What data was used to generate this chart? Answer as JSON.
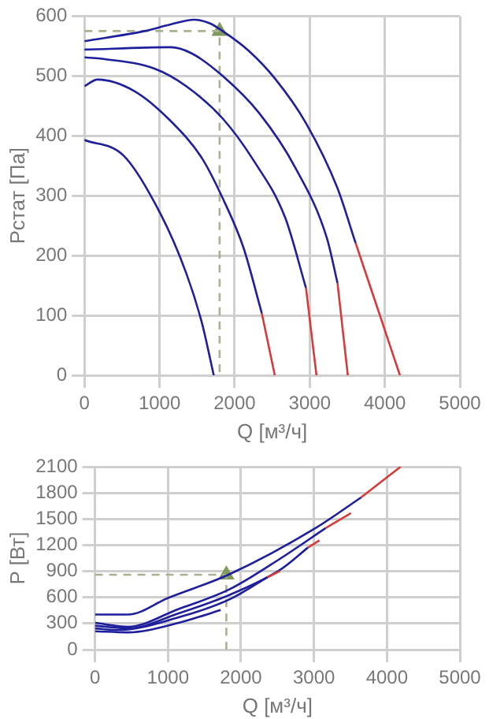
{
  "chart_data": [
    {
      "type": "line",
      "xlabel": "Q [м³/ч]",
      "ylabel": "Рстат [Па]",
      "xlim": [
        0,
        5000
      ],
      "xticks": [
        0,
        1000,
        2000,
        3000,
        4000,
        5000
      ],
      "ylim": [
        0,
        600
      ],
      "yticks": [
        0,
        100,
        200,
        300,
        400,
        500,
        600
      ],
      "grid": true,
      "legend": false,
      "marker": "none",
      "series": [
        {
          "color": "#1f1f9e",
          "x": [
            0,
            521,
            1007,
            1354,
            1563,
            1722
          ],
          "values": [
            393,
            367,
            271,
            171,
            88,
            0
          ]
        },
        {
          "color": "#1f1f9e",
          "x": [
            0,
            174,
            660,
            1146,
            1563,
            1840,
            2118,
            2361
          ],
          "values": [
            483,
            494,
            475,
            425,
            363,
            296,
            213,
            104
          ]
        },
        {
          "color": "#d83a3a",
          "x": [
            2361,
            2535
          ],
          "values": [
            104,
            0
          ]
        },
        {
          "color": "#1f1f9e",
          "x": [
            0,
            208,
            938,
            1354,
            1840,
            2257,
            2674,
            2950
          ],
          "values": [
            531,
            529,
            512,
            483,
            429,
            358,
            263,
            146
          ]
        },
        {
          "color": "#d83a3a",
          "x": [
            2950,
            3090
          ],
          "values": [
            146,
            0
          ]
        },
        {
          "color": "#1f1f9e",
          "x": [
            0,
            1146,
            1424,
            1840,
            2326,
            2812,
            3229,
            3370
          ],
          "values": [
            544,
            548,
            538,
            500,
            438,
            346,
            229,
            154
          ]
        },
        {
          "color": "#d83a3a",
          "x": [
            3370,
            3507
          ],
          "values": [
            154,
            0
          ]
        },
        {
          "color": "#1f1f9e",
          "x": [
            0,
            799,
            1146,
            1458,
            1667,
            1840,
            2188,
            2535,
            2951,
            3368,
            3611
          ],
          "values": [
            558,
            575,
            586,
            594,
            588,
            575,
            542,
            496,
            421,
            313,
            221
          ]
        },
        {
          "color": "#d83a3a",
          "x": [
            3611,
            3924,
            4201
          ],
          "values": [
            221,
            104,
            0
          ]
        },
        {
          "color": "#a8b090",
          "line_style": "dashed",
          "x": [
            0,
            1800,
            1800
          ],
          "values": [
            575,
            575,
            0
          ]
        },
        {
          "type": "scatter",
          "marker": "triangle",
          "color": "#7f9a5a",
          "x": [
            1800
          ],
          "values": [
            575
          ]
        }
      ]
    },
    {
      "type": "line",
      "xlabel": "Q [м³/ч]",
      "ylabel": "P [Вт]",
      "xlim": [
        0,
        5000
      ],
      "xticks": [
        0,
        1000,
        2000,
        3000,
        4000,
        5000
      ],
      "ylim": [
        0,
        2100
      ],
      "yticks": [
        0,
        300,
        600,
        900,
        1200,
        1500,
        1800,
        2100
      ],
      "grid": true,
      "legend": false,
      "marker": "none",
      "series": [
        {
          "color": "#1f1f9e",
          "x": [
            0,
            451,
            1146,
            1722
          ],
          "values": [
            211,
            198,
            307,
            455
          ]
        },
        {
          "color": "#1f1f9e",
          "x": [
            0,
            312,
            1146,
            1840,
            2361
          ],
          "values": [
            243,
            224,
            371,
            576,
            830
          ]
        },
        {
          "color": "#d83a3a",
          "x": [
            2361,
            2535
          ],
          "values": [
            830,
            902
          ]
        },
        {
          "color": "#1f1f9e",
          "x": [
            0,
            451,
            1146,
            1840,
            2535,
            2917
          ],
          "values": [
            275,
            243,
            416,
            627,
            915,
            1171
          ]
        },
        {
          "color": "#d83a3a",
          "x": [
            2917,
            3076
          ],
          "values": [
            1171,
            1254
          ]
        },
        {
          "color": "#1f1f9e",
          "x": [
            0,
            451,
            1146,
            1840,
            2535,
            3160
          ],
          "values": [
            307,
            262,
            467,
            691,
            1043,
            1395
          ]
        },
        {
          "color": "#d83a3a",
          "x": [
            3160,
            3507
          ],
          "values": [
            1395,
            1568
          ]
        },
        {
          "color": "#1f1f9e",
          "x": [
            0,
            451,
            1007,
            1840,
            3021,
            3646
          ],
          "values": [
            403,
            403,
            595,
            864,
            1395,
            1747
          ]
        },
        {
          "color": "#d83a3a",
          "x": [
            3646,
            4188
          ],
          "values": [
            1747,
            2100
          ]
        },
        {
          "color": "#a8b090",
          "line_style": "dashed",
          "x": [
            0,
            1800,
            1800
          ],
          "values": [
            860,
            860,
            0
          ]
        },
        {
          "type": "scatter",
          "marker": "triangle",
          "color": "#7f9a5a",
          "x": [
            1800
          ],
          "values": [
            860
          ]
        }
      ]
    }
  ]
}
